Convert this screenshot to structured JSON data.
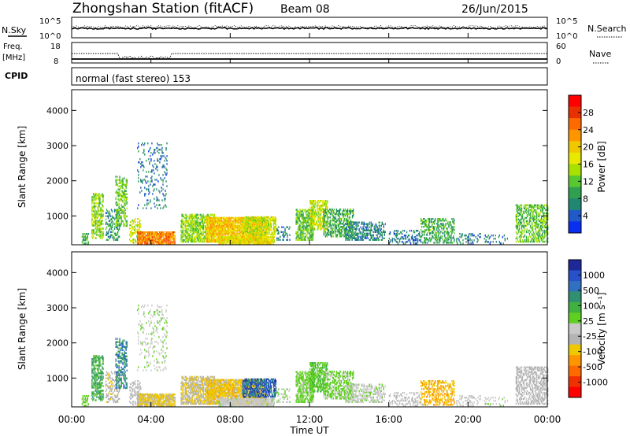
{
  "header": {
    "station": "Zhongshan Station (fitACF)",
    "beam": "Beam 08",
    "date": "26/Jun/2015"
  },
  "noise_panel": {
    "left_label": "N.Sky",
    "right_label": "N.Search",
    "left_ticks": [
      "10^5",
      "10^0"
    ],
    "right_ticks": [
      "10^5",
      "10^0"
    ]
  },
  "freq_panel": {
    "left_label_1": "Freq.",
    "left_label_2": "[MHz]",
    "right_label": "Nave",
    "left_ticks": [
      "18",
      "8"
    ],
    "right_ticks": [
      "60",
      "0"
    ]
  },
  "cpid_panel": {
    "label": "CPID",
    "mode": "normal (fast stereo) 153"
  },
  "power_panel": {
    "ylabel": "Slant Range [km]",
    "yticks": [
      "4000",
      "3000",
      "2000",
      "1000"
    ],
    "colorbar_label": "Power [dB]",
    "colorbar_ticks": [
      "28",
      "24",
      "20",
      "16",
      "12",
      "8",
      "4"
    ],
    "colorbar_colors": [
      "#ff0000",
      "#e83000",
      "#ff6a00",
      "#ff9600",
      "#f0c800",
      "#e8e800",
      "#a8e000",
      "#58c830",
      "#30a050",
      "#208870",
      "#205ac8",
      "#0a2ef0"
    ]
  },
  "velocity_panel": {
    "ylabel": "Slant Range [km]",
    "yticks": [
      "4000",
      "3000",
      "2000",
      "1000"
    ],
    "colorbar_label": "Velocity [m s⁻¹]",
    "colorbar_ticks": [
      "1000",
      "500",
      "100",
      "25",
      "-25",
      "-100",
      "-500",
      "-1000"
    ],
    "colorbar_colors": [
      "#1e2896",
      "#2850c8",
      "#3070c0",
      "#309070",
      "#40b040",
      "#60d020",
      "#c8c8c8",
      "#b4b4b4",
      "#f0c800",
      "#ff9600",
      "#ff6a00",
      "#f03000",
      "#ff0000"
    ]
  },
  "xaxis": {
    "ticks": [
      "00:00",
      "04:00",
      "08:00",
      "12:00",
      "16:00",
      "20:00",
      "00:00"
    ],
    "label": "Time UT"
  },
  "chart_data": {
    "type": "heatmap",
    "title": "Zhongshan Station (fitACF)",
    "xlabel": "Time UT",
    "ylabel": "Slant Range [km]",
    "xlim_hours": [
      0,
      24
    ],
    "ylim_km": [
      180,
      4590
    ],
    "power_range_db": [
      0,
      32
    ],
    "velocity_range": [
      -1200,
      1200
    ],
    "scatter_clusters": [
      {
        "t0": 0.5,
        "t1": 0.9,
        "r0": 200,
        "r1": 500,
        "power": 10,
        "velocity": 150,
        "density": 0.45
      },
      {
        "t0": 1.0,
        "t1": 1.6,
        "r0": 350,
        "r1": 1650,
        "power": 14,
        "velocity": 400,
        "density": 0.55
      },
      {
        "t0": 1.7,
        "t1": 2.4,
        "r0": 300,
        "r1": 1200,
        "power": 8,
        "velocity": -200,
        "density": 0.35
      },
      {
        "t0": 2.2,
        "t1": 2.8,
        "r0": 700,
        "r1": 2100,
        "power": 12,
        "velocity": 600,
        "density": 0.45
      },
      {
        "t0": 2.9,
        "t1": 3.5,
        "r0": 220,
        "r1": 900,
        "power": 16,
        "velocity": -100,
        "density": 0.4
      },
      {
        "t0": 3.3,
        "t1": 4.8,
        "r0": 1200,
        "r1": 3050,
        "power": 6,
        "velocity": 60,
        "density": 0.12
      },
      {
        "t0": 3.3,
        "t1": 5.2,
        "r0": 200,
        "r1": 520,
        "power": 24,
        "velocity": -300,
        "density": 0.85
      },
      {
        "t0": 5.5,
        "t1": 7.2,
        "r0": 250,
        "r1": 1050,
        "power": 14,
        "velocity": -250,
        "density": 0.65
      },
      {
        "t0": 6.8,
        "t1": 9.8,
        "r0": 250,
        "r1": 950,
        "power": 20,
        "velocity": -350,
        "density": 0.85
      },
      {
        "t0": 7.4,
        "t1": 10.2,
        "r0": 200,
        "r1": 420,
        "power": 18,
        "velocity": 10,
        "density": 0.8
      },
      {
        "t0": 8.6,
        "t1": 10.3,
        "r0": 450,
        "r1": 950,
        "power": 16,
        "velocity": 800,
        "density": 0.7
      },
      {
        "t0": 10.3,
        "t1": 11.0,
        "r0": 300,
        "r1": 700,
        "power": 6,
        "velocity": 80,
        "density": 0.3
      },
      {
        "t0": 11.3,
        "t1": 12.2,
        "r0": 300,
        "r1": 1200,
        "power": 12,
        "velocity": 150,
        "density": 0.6
      },
      {
        "t0": 12.0,
        "t1": 12.9,
        "r0": 600,
        "r1": 1450,
        "power": 16,
        "velocity": 250,
        "density": 0.55
      },
      {
        "t0": 12.7,
        "t1": 14.2,
        "r0": 400,
        "r1": 1200,
        "power": 10,
        "velocity": 150,
        "density": 0.45
      },
      {
        "t0": 13.8,
        "t1": 15.8,
        "r0": 300,
        "r1": 800,
        "power": 7,
        "velocity": 40,
        "density": 0.4
      },
      {
        "t0": 16.0,
        "t1": 17.6,
        "r0": 200,
        "r1": 600,
        "power": 6,
        "velocity": -80,
        "density": 0.3
      },
      {
        "t0": 17.6,
        "t1": 19.3,
        "r0": 220,
        "r1": 900,
        "power": 10,
        "velocity": -450,
        "density": 0.4
      },
      {
        "t0": 19.4,
        "t1": 20.6,
        "r0": 200,
        "r1": 500,
        "power": 6,
        "velocity": -50,
        "density": 0.25
      },
      {
        "t0": 20.8,
        "t1": 22.0,
        "r0": 200,
        "r1": 450,
        "power": 6,
        "velocity": 30,
        "density": 0.2
      },
      {
        "t0": 22.4,
        "t1": 24.0,
        "r0": 250,
        "r1": 1300,
        "power": 12,
        "velocity": -150,
        "density": 0.45
      }
    ]
  }
}
